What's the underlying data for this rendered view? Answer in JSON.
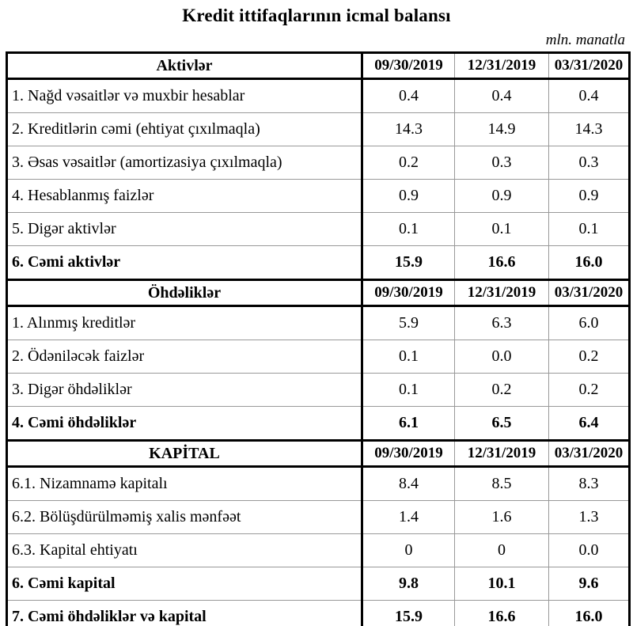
{
  "page": {
    "title": "Kredit ittifaqlarının icmal balansı",
    "unit_note": "mln. manatla"
  },
  "colors": {
    "background": "#ffffff",
    "text": "#000000",
    "border_strong": "#000000",
    "border_light": "#999999"
  },
  "table": {
    "date_columns": [
      "09/30/2019",
      "12/31/2019",
      "03/31/2020"
    ],
    "sections": [
      {
        "header": "Aktivlər",
        "rows": [
          {
            "label": "1. Nağd vəsaitlər və muxbir hesablar",
            "values": [
              "0.4",
              "0.4",
              "0.4"
            ],
            "bold": false
          },
          {
            "label": "2. Kreditlərin cəmi (ehtiyat çıxılmaqla)",
            "values": [
              "14.3",
              "14.9",
              "14.3"
            ],
            "bold": false
          },
          {
            "label": "3. Əsas vəsaitlər (amortizasiya çıxılmaqla)",
            "values": [
              "0.2",
              "0.3",
              "0.3"
            ],
            "bold": false
          },
          {
            "label": "4. Hesablanmış faizlər",
            "values": [
              "0.9",
              "0.9",
              "0.9"
            ],
            "bold": false
          },
          {
            "label": "5. Digər aktivlər",
            "values": [
              "0.1",
              "0.1",
              "0.1"
            ],
            "bold": false
          },
          {
            "label": "6. Cəmi aktivlər",
            "values": [
              "15.9",
              "16.6",
              "16.0"
            ],
            "bold": true
          }
        ]
      },
      {
        "header": "Öhdəliklər",
        "rows": [
          {
            "label": "1. Alınmış kreditlər",
            "values": [
              "5.9",
              "6.3",
              "6.0"
            ],
            "bold": false
          },
          {
            "label": "2. Ödəniləcək faizlər",
            "values": [
              "0.1",
              "0.0",
              "0.2"
            ],
            "bold": false
          },
          {
            "label": "3. Digər öhdəliklər",
            "values": [
              "0.1",
              "0.2",
              "0.2"
            ],
            "bold": false
          },
          {
            "label": "4. Cəmi öhdəliklər",
            "values": [
              "6.1",
              "6.5",
              "6.4"
            ],
            "bold": true
          }
        ]
      },
      {
        "header": "KAPİTAL",
        "rows": [
          {
            "label": "6.1. Nizamnamə kapitalı",
            "values": [
              "8.4",
              "8.5",
              "8.3"
            ],
            "bold": false
          },
          {
            "label": "6.2. Bölüşdürülməmiş xalis mənfəət",
            "values": [
              "1.4",
              "1.6",
              "1.3"
            ],
            "bold": false
          },
          {
            "label": "6.3. Kapital ehtiyatı",
            "values": [
              "0",
              "0",
              "0.0"
            ],
            "bold": false
          },
          {
            "label": "6. Cəmi kapital",
            "values": [
              "9.8",
              "10.1",
              "9.6"
            ],
            "bold": true
          },
          {
            "label": "7. Cəmi öhdəliklər və kapital",
            "values": [
              "15.9",
              "16.6",
              "16.0"
            ],
            "bold": true
          }
        ]
      }
    ]
  }
}
